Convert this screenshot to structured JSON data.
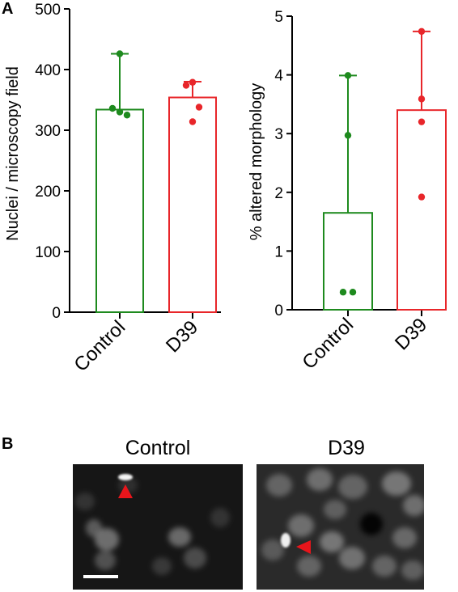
{
  "panel_labels": {
    "a": "A",
    "b": "B"
  },
  "colors": {
    "control": "#1e8a1e",
    "d39": "#e8262a"
  },
  "chart_data": [
    {
      "type": "bar",
      "ylabel": "Nuclei / microscopy field",
      "xlabel": "",
      "ylim": [
        0,
        500
      ],
      "yticks": [
        "0",
        "100",
        "200",
        "300",
        "400",
        "500"
      ],
      "categories": [
        "Control",
        "D39"
      ],
      "values": [
        334,
        354
      ],
      "error_high": [
        426,
        380
      ],
      "points": [
        [
          426,
          336,
          330,
          325
        ],
        [
          379,
          374,
          338,
          314
        ]
      ],
      "bar_style": "open"
    },
    {
      "type": "bar",
      "ylabel": "% altered morphology",
      "xlabel": "",
      "ylim": [
        0,
        5
      ],
      "yticks": [
        "0",
        "1",
        "2",
        "3",
        "4",
        "5"
      ],
      "categories": [
        "Control",
        "D39"
      ],
      "values": [
        1.65,
        3.4
      ],
      "error_high": [
        3.99,
        4.74
      ],
      "points": [
        [
          3.99,
          2.97,
          0.3,
          0.3
        ],
        [
          4.74,
          3.59,
          3.2,
          1.92
        ]
      ],
      "bar_style": "open"
    }
  ],
  "micrographs": {
    "control_title": "Control",
    "d39_title": "D39"
  }
}
